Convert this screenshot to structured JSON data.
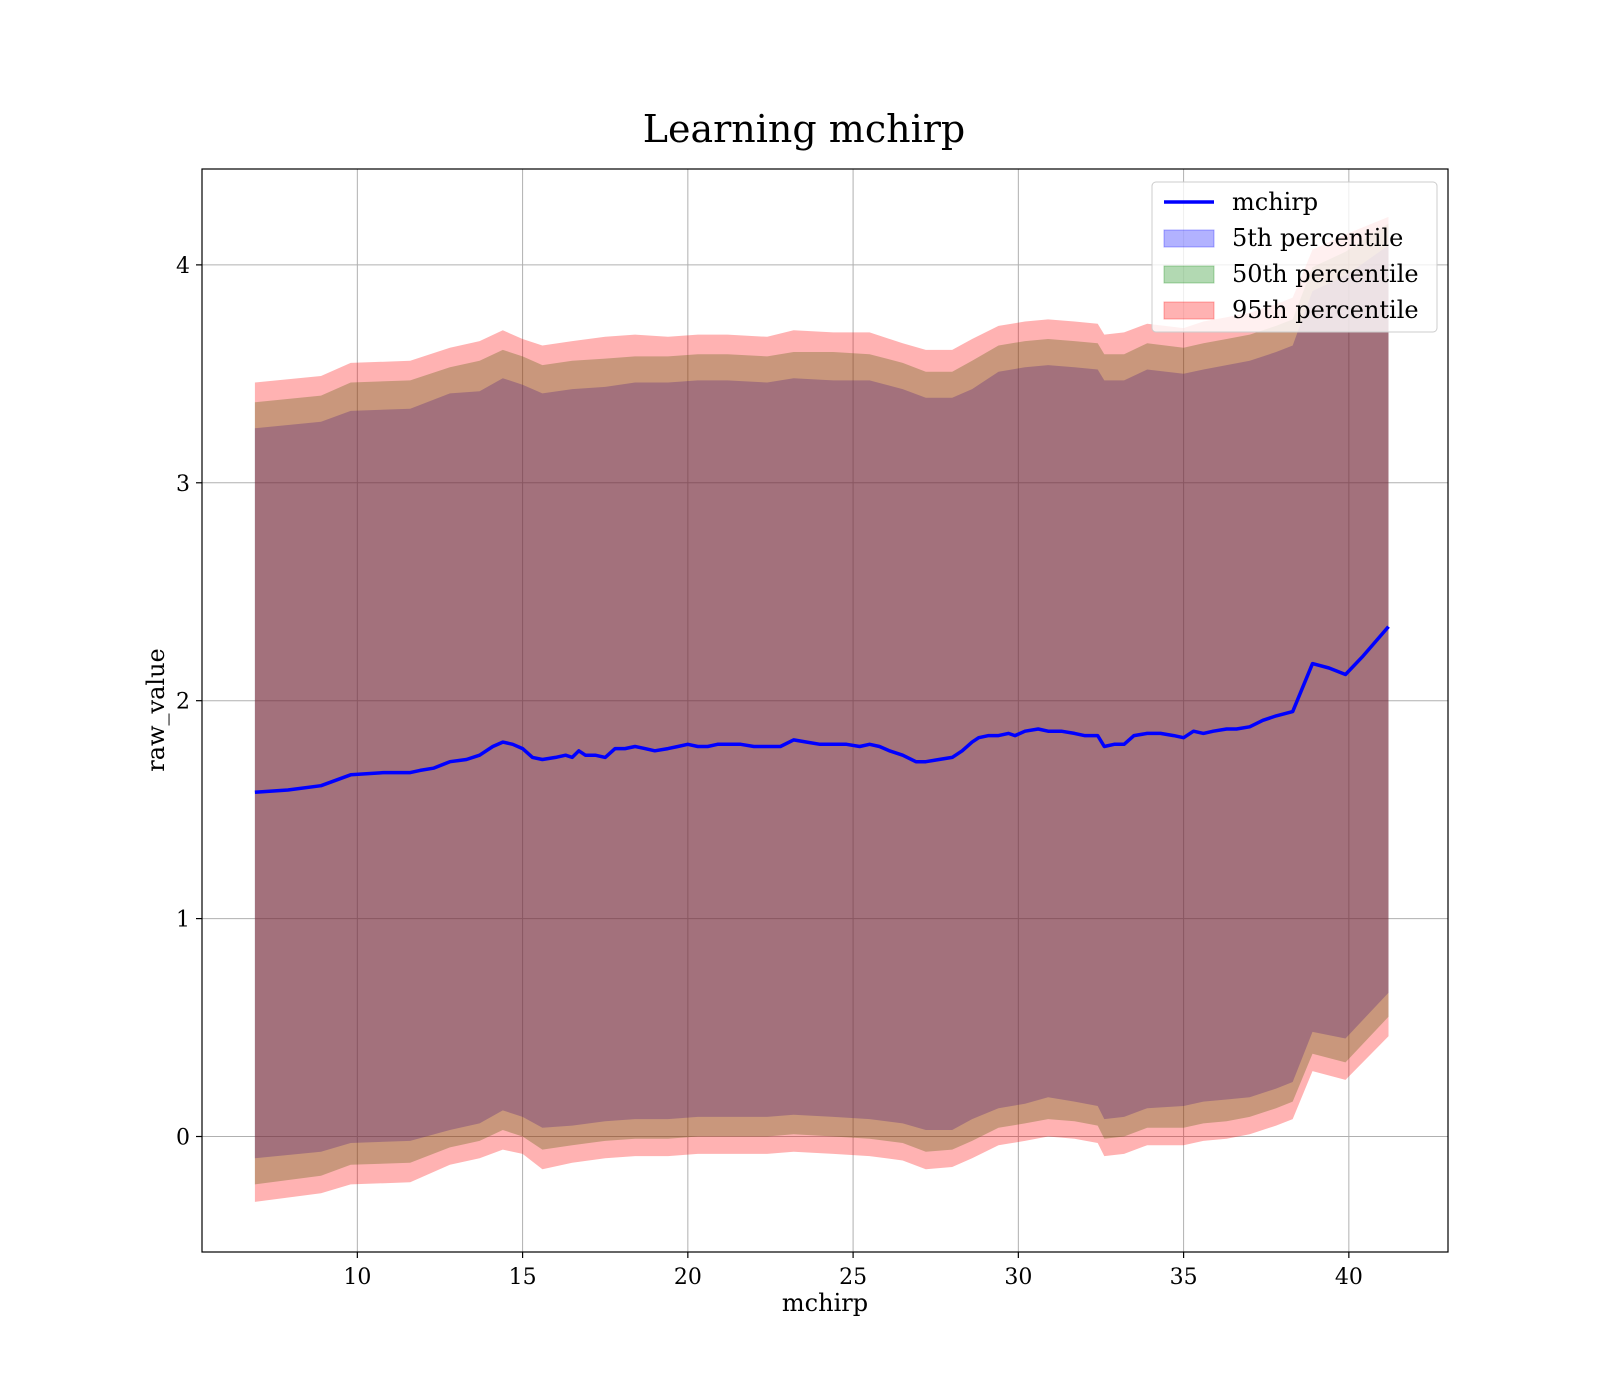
{
  "chart_data": {
    "type": "area",
    "title": "Learning mchirp",
    "xlabel": "mchirp",
    "ylabel": "raw_value",
    "xlim": [
      5.3,
      43.0
    ],
    "ylim": [
      -0.53,
      4.44
    ],
    "xticks": [
      10,
      15,
      20,
      25,
      30,
      35,
      40
    ],
    "yticks": [
      0,
      1,
      2,
      3,
      4
    ],
    "grid": true,
    "legend_position": "top-right",
    "colors": {
      "line": "#0000ff",
      "band_5th": "#0000ff",
      "band_50th": "#008000",
      "band_95th": "#ff0000",
      "grid": "#b0b0b0"
    },
    "series": [
      {
        "name": "mchirp",
        "kind": "line",
        "x": [
          6.9,
          7.9,
          8.9,
          9.8,
          10.8,
          11.2,
          11.6,
          11.9,
          12.3,
          12.8,
          13.3,
          13.7,
          14.1,
          14.4,
          14.7,
          15.0,
          15.3,
          15.6,
          16.0,
          16.3,
          16.5,
          16.7,
          16.9,
          17.2,
          17.5,
          17.8,
          18.1,
          18.4,
          18.7,
          19.0,
          19.4,
          19.7,
          20.0,
          20.3,
          20.6,
          20.9,
          21.2,
          21.6,
          22.0,
          22.4,
          22.8,
          23.2,
          23.6,
          24.0,
          24.4,
          24.8,
          25.2,
          25.5,
          25.8,
          26.1,
          26.5,
          26.9,
          27.2,
          27.6,
          28.0,
          28.3,
          28.6,
          28.8,
          29.1,
          29.4,
          29.7,
          29.9,
          30.2,
          30.6,
          30.9,
          31.3,
          31.7,
          32.0,
          32.4,
          32.6,
          32.9,
          33.2,
          33.5,
          33.9,
          34.3,
          34.7,
          35.0,
          35.3,
          35.6,
          35.9,
          36.3,
          36.6,
          37.0,
          37.4,
          37.8,
          38.3,
          38.9,
          39.4,
          39.9,
          40.4,
          40.8,
          41.2
        ],
        "y": [
          1.58,
          1.59,
          1.61,
          1.66,
          1.67,
          1.67,
          1.67,
          1.68,
          1.69,
          1.72,
          1.73,
          1.75,
          1.79,
          1.81,
          1.8,
          1.78,
          1.74,
          1.73,
          1.74,
          1.75,
          1.74,
          1.77,
          1.75,
          1.75,
          1.74,
          1.78,
          1.78,
          1.79,
          1.78,
          1.77,
          1.78,
          1.79,
          1.8,
          1.79,
          1.79,
          1.8,
          1.8,
          1.8,
          1.79,
          1.79,
          1.79,
          1.82,
          1.81,
          1.8,
          1.8,
          1.8,
          1.79,
          1.8,
          1.79,
          1.77,
          1.75,
          1.72,
          1.72,
          1.73,
          1.74,
          1.77,
          1.81,
          1.83,
          1.84,
          1.84,
          1.85,
          1.84,
          1.86,
          1.87,
          1.86,
          1.86,
          1.85,
          1.84,
          1.84,
          1.79,
          1.8,
          1.8,
          1.84,
          1.85,
          1.85,
          1.84,
          1.83,
          1.86,
          1.85,
          1.86,
          1.87,
          1.87,
          1.88,
          1.91,
          1.93,
          1.95,
          2.17,
          2.15,
          2.12,
          2.2,
          2.27,
          2.34
        ]
      },
      {
        "name": "5th percentile",
        "kind": "band",
        "x": [
          6.9,
          8.9,
          9.8,
          11.6,
          12.8,
          13.7,
          14.4,
          15.0,
          15.6,
          16.5,
          17.5,
          18.4,
          19.4,
          20.3,
          21.2,
          22.4,
          23.2,
          24.4,
          25.5,
          26.5,
          27.2,
          28.0,
          28.6,
          29.4,
          30.2,
          30.9,
          31.7,
          32.4,
          32.6,
          33.2,
          33.9,
          35.0,
          35.6,
          36.3,
          37.0,
          37.8,
          38.3,
          38.9,
          39.9,
          41.2
        ],
        "lower": [
          -0.1,
          -0.07,
          -0.03,
          -0.02,
          0.03,
          0.06,
          0.12,
          0.09,
          0.04,
          0.05,
          0.07,
          0.08,
          0.08,
          0.09,
          0.09,
          0.09,
          0.1,
          0.09,
          0.08,
          0.06,
          0.03,
          0.03,
          0.08,
          0.13,
          0.15,
          0.18,
          0.16,
          0.14,
          0.08,
          0.09,
          0.13,
          0.14,
          0.16,
          0.17,
          0.18,
          0.22,
          0.25,
          0.48,
          0.45,
          0.66
        ],
        "upper": [
          3.25,
          3.28,
          3.33,
          3.34,
          3.41,
          3.42,
          3.48,
          3.45,
          3.41,
          3.43,
          3.44,
          3.46,
          3.46,
          3.47,
          3.47,
          3.46,
          3.48,
          3.47,
          3.47,
          3.43,
          3.39,
          3.39,
          3.43,
          3.51,
          3.53,
          3.54,
          3.53,
          3.52,
          3.47,
          3.47,
          3.52,
          3.5,
          3.52,
          3.54,
          3.56,
          3.6,
          3.63,
          3.88,
          3.95,
          4.09
        ]
      },
      {
        "name": "50th percentile",
        "kind": "band",
        "x": [
          6.9,
          8.9,
          9.8,
          11.6,
          12.8,
          13.7,
          14.4,
          15.0,
          15.6,
          16.5,
          17.5,
          18.4,
          19.4,
          20.3,
          21.2,
          22.4,
          23.2,
          24.4,
          25.5,
          26.5,
          27.2,
          28.0,
          28.6,
          29.4,
          30.2,
          30.9,
          31.7,
          32.4,
          32.6,
          33.2,
          33.9,
          35.0,
          35.6,
          36.3,
          37.0,
          37.8,
          38.3,
          38.9,
          39.9,
          41.2
        ],
        "lower": [
          -0.22,
          -0.18,
          -0.13,
          -0.12,
          -0.05,
          -0.02,
          0.03,
          0.0,
          -0.06,
          -0.04,
          -0.02,
          -0.01,
          -0.01,
          0.0,
          0.0,
          0.0,
          0.01,
          0.0,
          -0.01,
          -0.03,
          -0.07,
          -0.06,
          -0.02,
          0.04,
          0.06,
          0.08,
          0.07,
          0.05,
          -0.01,
          0.0,
          0.04,
          0.04,
          0.06,
          0.07,
          0.09,
          0.13,
          0.16,
          0.38,
          0.34,
          0.55
        ],
        "upper": [
          3.37,
          3.4,
          3.46,
          3.47,
          3.53,
          3.56,
          3.61,
          3.58,
          3.54,
          3.56,
          3.57,
          3.58,
          3.58,
          3.59,
          3.59,
          3.58,
          3.6,
          3.6,
          3.59,
          3.55,
          3.51,
          3.51,
          3.56,
          3.63,
          3.65,
          3.66,
          3.65,
          3.64,
          3.59,
          3.59,
          3.64,
          3.62,
          3.64,
          3.66,
          3.68,
          3.72,
          3.75,
          3.99,
          4.06,
          4.19
        ]
      },
      {
        "name": "95th percentile",
        "kind": "band",
        "x": [
          6.9,
          8.9,
          9.8,
          11.6,
          12.8,
          13.7,
          14.4,
          15.0,
          15.6,
          16.5,
          17.5,
          18.4,
          19.4,
          20.3,
          21.2,
          22.4,
          23.2,
          24.4,
          25.5,
          26.5,
          27.2,
          28.0,
          28.6,
          29.4,
          30.2,
          30.9,
          31.7,
          32.4,
          32.6,
          33.2,
          33.9,
          35.0,
          35.6,
          36.3,
          37.0,
          37.8,
          38.3,
          38.9,
          39.9,
          41.2
        ],
        "lower": [
          -0.3,
          -0.26,
          -0.22,
          -0.21,
          -0.13,
          -0.1,
          -0.06,
          -0.08,
          -0.15,
          -0.12,
          -0.1,
          -0.09,
          -0.09,
          -0.08,
          -0.08,
          -0.08,
          -0.07,
          -0.08,
          -0.09,
          -0.11,
          -0.15,
          -0.14,
          -0.1,
          -0.04,
          -0.02,
          0.0,
          -0.01,
          -0.03,
          -0.09,
          -0.08,
          -0.04,
          -0.04,
          -0.02,
          -0.01,
          0.01,
          0.05,
          0.08,
          0.3,
          0.26,
          0.46
        ],
        "upper": [
          3.46,
          3.49,
          3.55,
          3.56,
          3.62,
          3.65,
          3.7,
          3.66,
          3.63,
          3.65,
          3.67,
          3.68,
          3.67,
          3.68,
          3.68,
          3.67,
          3.7,
          3.69,
          3.69,
          3.64,
          3.61,
          3.61,
          3.66,
          3.72,
          3.74,
          3.75,
          3.74,
          3.73,
          3.68,
          3.69,
          3.73,
          3.71,
          3.74,
          3.76,
          3.78,
          3.82,
          3.85,
          4.07,
          4.14,
          4.22
        ]
      }
    ]
  }
}
